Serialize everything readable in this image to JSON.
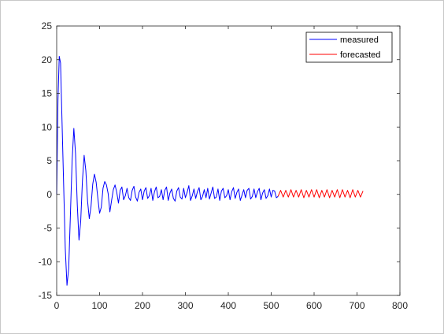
{
  "chart_data": {
    "type": "line",
    "title": "",
    "xlabel": "",
    "ylabel": "",
    "xlim": [
      0,
      800
    ],
    "ylim": [
      -15,
      25
    ],
    "x_ticks": [
      0,
      100,
      200,
      300,
      400,
      500,
      600,
      700,
      800
    ],
    "y_ticks": [
      -15,
      -10,
      -5,
      0,
      5,
      10,
      15,
      20,
      25
    ],
    "grid": false,
    "legend_position": "top-right",
    "series": [
      {
        "name": "measured",
        "color": "#0000ff",
        "x": [
          0,
          3,
          6,
          9,
          12,
          16,
          20,
          24,
          28,
          32,
          36,
          40,
          44,
          48,
          52,
          56,
          60,
          64,
          68,
          72,
          76,
          80,
          84,
          88,
          92,
          96,
          100,
          104,
          108,
          112,
          116,
          120,
          124,
          128,
          132,
          136,
          140,
          144,
          148,
          152,
          156,
          160,
          164,
          168,
          172,
          176,
          180,
          184,
          188,
          192,
          196,
          200,
          204,
          208,
          212,
          216,
          220,
          224,
          228,
          232,
          236,
          240,
          244,
          248,
          252,
          256,
          260,
          264,
          268,
          272,
          276,
          280,
          284,
          288,
          292,
          296,
          300,
          304,
          308,
          312,
          316,
          320,
          324,
          328,
          332,
          336,
          340,
          344,
          348,
          352,
          356,
          360,
          364,
          368,
          372,
          376,
          380,
          384,
          388,
          392,
          396,
          400,
          404,
          408,
          412,
          416,
          420,
          424,
          428,
          432,
          436,
          440,
          444,
          448,
          452,
          456,
          460,
          464,
          468,
          472,
          476,
          480,
          484,
          488,
          492,
          496,
          500,
          504,
          508,
          512,
          516
        ],
        "y": [
          0,
          14,
          20.5,
          19.5,
          12,
          2,
          -8,
          -13.5,
          -11,
          -3,
          5,
          9.8,
          6,
          -1.5,
          -6.8,
          -4,
          2,
          5.8,
          3.5,
          -1,
          -3.6,
          -1.8,
          1.5,
          3,
          1.8,
          -0.6,
          -2.8,
          -1.9,
          0.9,
          1.9,
          1.4,
          0.1,
          -2.6,
          -0.9,
          0.7,
          1.4,
          0.3,
          -1.3,
          0.6,
          1.1,
          -0.8,
          -0.2,
          0.9,
          -0.5,
          -0.9,
          0.6,
          1.2,
          -0.4,
          -1.0,
          0.3,
          0.8,
          -0.8,
          0.5,
          1.0,
          -0.6,
          -0.2,
          0.9,
          -0.9,
          0.4,
          1.1,
          -0.5,
          -0.3,
          0.7,
          -0.8,
          0.6,
          1.1,
          -0.9,
          0.2,
          0.8,
          -0.6,
          -1.0,
          0.5,
          1.0,
          -0.4,
          -0.7,
          0.9,
          -0.5,
          0.3,
          1.3,
          -0.9,
          -0.2,
          0.8,
          -0.6,
          0.4,
          1.0,
          -0.8,
          -0.3,
          0.7,
          -0.5,
          0.9,
          -0.7,
          0.2,
          1.1,
          -0.6,
          -0.4,
          0.8,
          -0.9,
          0.5,
          0.9,
          -0.5,
          -0.2,
          0.7,
          -0.8,
          0.4,
          1.0,
          -0.6,
          0.3,
          0.8,
          -0.9,
          -0.1,
          0.7,
          -0.5,
          0.6,
          0.9,
          -0.7,
          -0.3,
          0.8,
          -0.5,
          0.4,
          0.9,
          -0.8,
          0.2,
          0.7,
          -0.6,
          -0.2,
          0.8,
          -0.4,
          0.6,
          0.5,
          -0.5,
          -0.3
        ]
      },
      {
        "name": "forecasted",
        "color": "#ff0000",
        "x": [
          516,
          522,
          528,
          534,
          540,
          546,
          552,
          558,
          564,
          570,
          576,
          582,
          588,
          594,
          600,
          606,
          612,
          618,
          624,
          630,
          636,
          642,
          648,
          654,
          660,
          666,
          672,
          678,
          684,
          690,
          696,
          702,
          708,
          714
        ],
        "y": [
          -0.3,
          0.6,
          -0.4,
          0.6,
          -0.4,
          0.7,
          -0.4,
          0.6,
          -0.4,
          0.7,
          -0.5,
          0.6,
          -0.4,
          0.7,
          -0.4,
          0.7,
          -0.5,
          0.6,
          -0.4,
          0.7,
          -0.5,
          0.6,
          -0.4,
          0.7,
          -0.5,
          0.7,
          -0.4,
          0.6,
          -0.5,
          0.7,
          -0.4,
          0.6,
          -0.4,
          0.5
        ]
      }
    ]
  }
}
